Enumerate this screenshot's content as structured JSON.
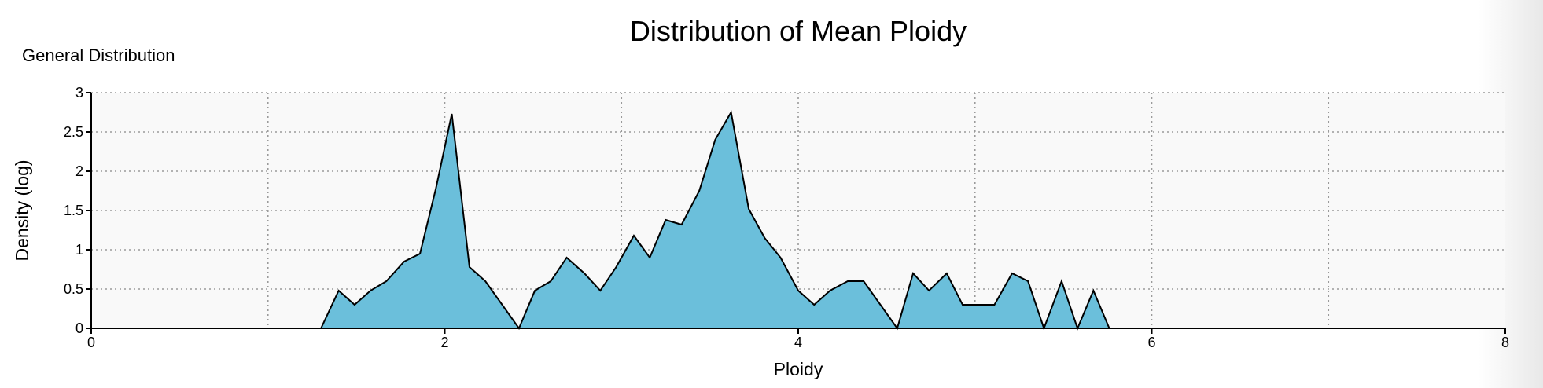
{
  "header": {
    "title": "Distribution of Mean Ploidy",
    "subtitle": "General Distribution"
  },
  "chart_data": {
    "type": "area",
    "title": "Distribution of Mean Ploidy",
    "subtitle": "General Distribution",
    "xlabel": "Ploidy",
    "ylabel": "Density (log)",
    "xlim": [
      0,
      8
    ],
    "ylim": [
      0,
      3
    ],
    "x_ticks": [
      0,
      2,
      4,
      6,
      8
    ],
    "y_ticks": [
      0,
      0.5,
      1,
      1.5,
      2,
      2.5,
      3
    ],
    "x_tick_labels": [
      "0",
      "2",
      "4",
      "6",
      "8"
    ],
    "y_tick_labels": [
      "0",
      "0.5",
      "1",
      "1.5",
      "2",
      "2.5",
      "3"
    ],
    "x_grid": [
      1,
      2,
      3,
      4,
      5,
      6,
      7
    ],
    "y_grid": [
      0.5,
      1,
      1.5,
      2,
      2.5,
      3
    ],
    "grid": true,
    "colors": {
      "fill": "#6bbfdb",
      "stroke": "#000000",
      "plot_background": "#f9f9f9"
    },
    "series": [
      {
        "x": [
          1.3,
          1.4,
          1.49,
          1.58,
          1.67,
          1.77,
          1.86,
          1.95,
          2.04,
          2.14,
          2.23,
          2.42,
          2.51,
          2.6,
          2.69,
          2.79,
          2.88,
          2.97,
          3.07,
          3.16,
          3.25,
          3.34,
          3.44,
          3.53,
          3.62,
          3.72,
          3.81,
          3.9,
          4.0,
          4.09,
          4.18,
          4.28,
          4.37,
          4.56,
          4.65,
          4.74,
          4.84,
          4.93,
          5.02,
          5.11,
          5.21,
          5.3,
          5.39,
          5.49,
          5.58,
          5.67,
          5.76
        ],
        "values": [
          0,
          0.48,
          0.3,
          0.48,
          0.6,
          0.85,
          0.95,
          1.78,
          2.73,
          0.78,
          0.6,
          0,
          0.48,
          0.6,
          0.9,
          0.7,
          0.48,
          0.78,
          1.18,
          0.9,
          1.38,
          1.32,
          1.75,
          2.4,
          2.75,
          1.52,
          1.15,
          0.9,
          0.48,
          0.3,
          0.48,
          0.6,
          0.6,
          0,
          0.7,
          0.48,
          0.7,
          0.3,
          0.3,
          0.3,
          0.7,
          0.6,
          0,
          0.6,
          0,
          0.48,
          0
        ]
      }
    ]
  }
}
